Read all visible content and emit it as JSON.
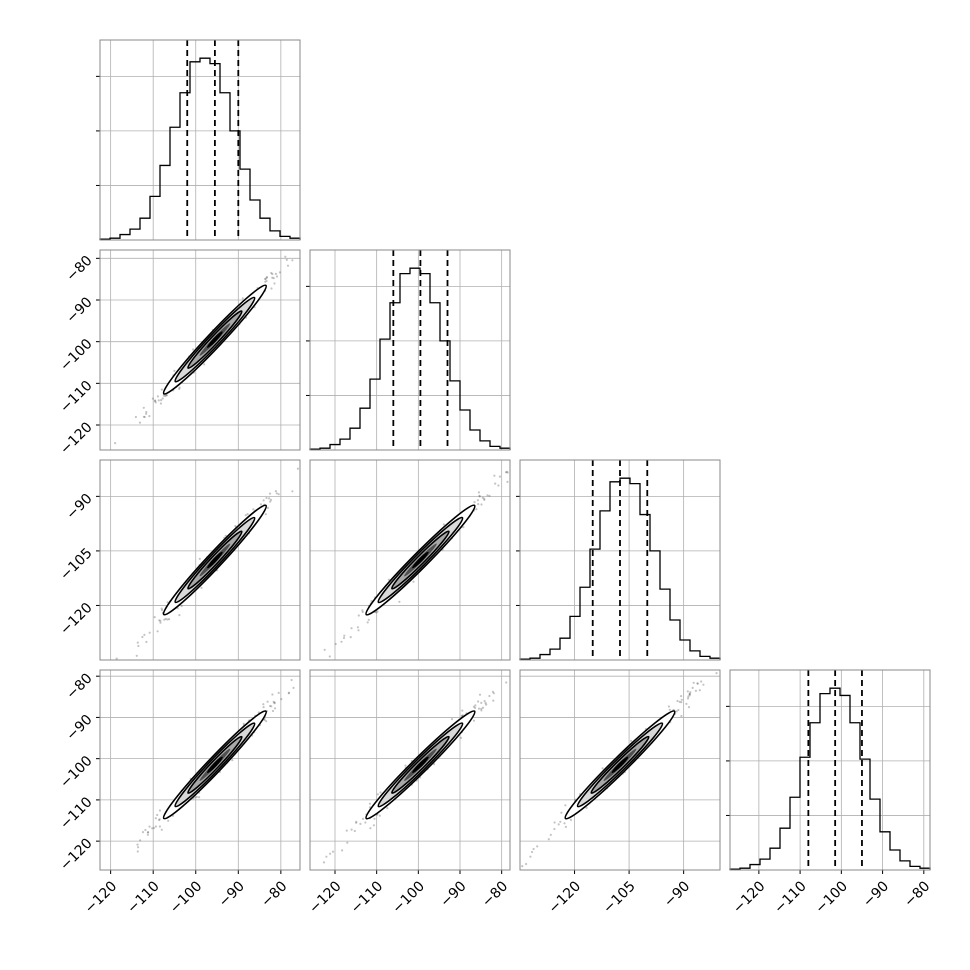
{
  "chart_data": {
    "type": "corner",
    "title": "",
    "n_params": 4,
    "parameters": [
      {
        "label": "",
        "ticks": [
          "−120",
          "−110",
          "−100",
          "−90",
          "−80"
        ],
        "tick_values": [
          -120,
          -110,
          -100,
          -90,
          -80
        ],
        "range": [
          -122.5,
          -75.5
        ],
        "median": -95.5,
        "q16": -102.0,
        "q84": -90.0
      },
      {
        "label": "",
        "ticks": [
          "−120",
          "−110",
          "−100",
          "−90",
          "−80"
        ],
        "tick_values": [
          -120,
          -110,
          -100,
          -90,
          -80
        ],
        "range": [
          -126,
          -78
        ],
        "median": -99.5,
        "q16": -106.0,
        "q84": -93.0
      },
      {
        "label": "",
        "ticks": [
          "−120",
          "−105",
          "−90"
        ],
        "tick_values": [
          -120,
          -105,
          -90
        ],
        "range": [
          -135,
          -80
        ],
        "median": -107.5,
        "q16": -115.0,
        "q84": -100.0
      },
      {
        "label": "",
        "ticks": [
          "−120",
          "−110",
          "−100",
          "−90",
          "−80"
        ],
        "tick_values": [
          -120,
          -110,
          -100,
          -90,
          -80
        ],
        "range": [
          -127,
          -78.5
        ],
        "median": -101.5,
        "q16": -108.0,
        "q84": -95.0
      }
    ],
    "histograms": [
      {
        "param": 0,
        "bins": 20,
        "counts": [
          0.5,
          1,
          3,
          6,
          12,
          24,
          41,
          62,
          81,
          98,
          100,
          97,
          81,
          60,
          39,
          22,
          12,
          5,
          2,
          1
        ]
      },
      {
        "param": 1,
        "bins": 20,
        "counts": [
          0.5,
          1,
          3,
          6,
          12,
          23,
          39,
          61,
          81,
          97,
          100,
          97,
          81,
          60,
          38,
          22,
          11,
          5,
          2,
          1
        ]
      },
      {
        "param": 2,
        "bins": 20,
        "counts": [
          0.5,
          1,
          3,
          6,
          12,
          24,
          40,
          61,
          82,
          98,
          100,
          97,
          80,
          60,
          39,
          22,
          11,
          5,
          2,
          1
        ]
      },
      {
        "param": 3,
        "bins": 20,
        "counts": [
          0.5,
          1,
          3,
          6,
          12,
          23,
          40,
          62,
          81,
          97,
          100,
          96,
          81,
          61,
          39,
          21,
          11,
          5,
          2,
          1
        ]
      }
    ],
    "correlation": 0.99,
    "grid": true,
    "colors": {
      "ink": "#000000",
      "density_dark": "#000000",
      "density_light": "#d9d9d9",
      "scatter": "#555555",
      "grid": "#b0b0b0",
      "frame": "#888888"
    }
  }
}
